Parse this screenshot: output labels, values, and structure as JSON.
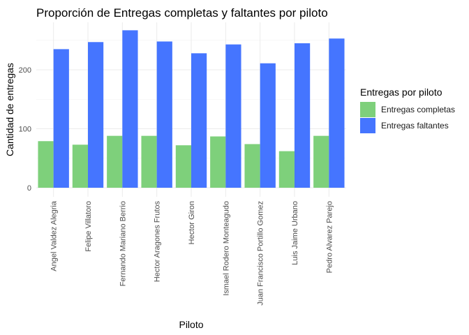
{
  "chart_data": {
    "type": "bar",
    "title": "Proporción de Entregas completas y faltantes por piloto",
    "xlabel": "Piloto",
    "ylabel": "Cantidad de entregas",
    "ylim": [
      0,
      280
    ],
    "yticks": [
      0,
      100,
      200
    ],
    "grid": true,
    "legend": {
      "title": "Entregas por piloto",
      "position": "right"
    },
    "categories": [
      "Angel Valdez Alegria",
      "Felipe Villatoro",
      "Fernando Mariano Berrio",
      "Hector Aragones Frutos",
      "Hector Giron",
      "Ismael Rodero Monteagudo",
      "Juan Francisco Portillo Gomez",
      "Luis Jaime Urbano",
      "Pedro Alvarez Parejo"
    ],
    "series": [
      {
        "name": "Entregas completas",
        "color": "#7ED07B",
        "values": [
          79,
          73,
          88,
          88,
          72,
          87,
          74,
          62,
          88
        ]
      },
      {
        "name": "Entregas faltantes",
        "color": "#4575FF",
        "values": [
          235,
          247,
          267,
          248,
          228,
          243,
          211,
          245,
          253
        ]
      }
    ]
  }
}
